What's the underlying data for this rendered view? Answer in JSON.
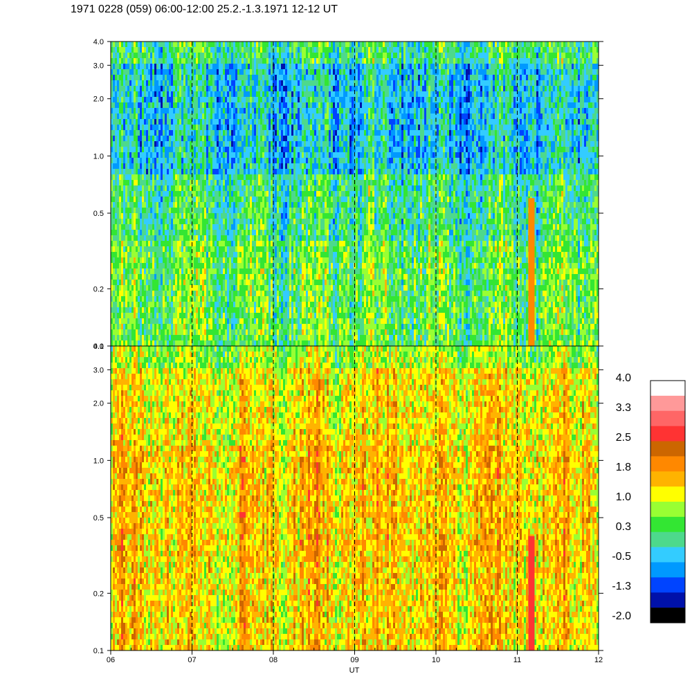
{
  "title": "1971 0228 (059) 06:00-12:00 25.2.-1.3.1971  12-12 UT",
  "chart_data": {
    "type": "heatmap",
    "xlabel": "UT",
    "x_ticks": [
      "06",
      "07",
      "08",
      "09",
      "10",
      "11",
      "12"
    ],
    "x_range": [
      6,
      12
    ],
    "x_dashed_lines_at": [
      7,
      8,
      9,
      10,
      11
    ],
    "y_scale": "log",
    "y_range": [
      0.1,
      4.0
    ],
    "y_ticks": [
      "0.1",
      "0.2",
      "0.5",
      "1.0",
      "2.0",
      "3.0",
      "4.0"
    ],
    "panels": [
      {
        "name": "upper",
        "dominant_levels": [
          0.3,
          0.5,
          1.0
        ],
        "bands": [
          {
            "y_from": 0.1,
            "y_to": 0.35,
            "mean": 0.5
          },
          {
            "y_from": 0.35,
            "y_to": 0.8,
            "mean": 0.2
          },
          {
            "y_from": 0.8,
            "y_to": 3.0,
            "mean": -0.3
          },
          {
            "y_from": 3.0,
            "y_to": 4.0,
            "mean": 0.2
          }
        ]
      },
      {
        "name": "lower",
        "dominant_levels": [
          1.0,
          1.4,
          1.8
        ],
        "bands": [
          {
            "y_from": 0.1,
            "y_to": 0.3,
            "mean": 1.4
          },
          {
            "y_from": 0.3,
            "y_to": 1.2,
            "mean": 1.5
          },
          {
            "y_from": 1.2,
            "y_to": 3.0,
            "mean": 1.3
          },
          {
            "y_from": 3.0,
            "y_to": 4.0,
            "mean": 0.8
          }
        ]
      }
    ],
    "features": [
      {
        "x": 11.17,
        "panel": "upper",
        "y_from": 0.1,
        "y_to": 0.6,
        "value": 1.9
      },
      {
        "x": 11.17,
        "panel": "lower",
        "y_from": 0.1,
        "y_to": 0.4,
        "value": 2.6
      }
    ],
    "colorbar": {
      "labels": [
        "4.0",
        "3.3",
        "2.5",
        "1.8",
        "1.0",
        "0.3",
        "-0.5",
        "-1.3",
        "-2.0"
      ],
      "colors": [
        "#ffffff",
        "#ff9999",
        "#ff6666",
        "#ff3333",
        "#cc6600",
        "#ff8800",
        "#ffb300",
        "#ffff00",
        "#99ff33",
        "#33e633",
        "#4dd98c",
        "#33ccff",
        "#0099ff",
        "#0044ff",
        "#0011aa",
        "#000000"
      ]
    }
  }
}
